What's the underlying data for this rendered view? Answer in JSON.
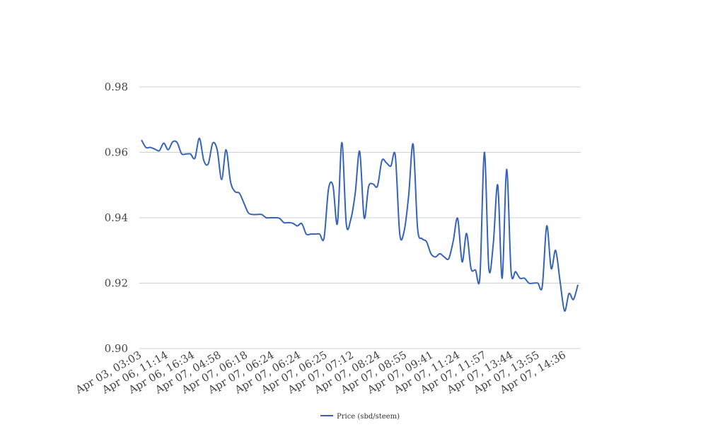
{
  "chart_data": {
    "type": "line",
    "title": "",
    "xlabel": "",
    "ylabel": "",
    "ylim": [
      0.9,
      0.98
    ],
    "yticks": [
      "0.90",
      "0.92",
      "0.94",
      "0.96",
      "0.98"
    ],
    "grid": true,
    "legend_position": "bottom",
    "xtick_labels": [
      "Apr 03, 03:03",
      "Apr 06, 11:14",
      "Apr 06, 16:34",
      "Apr 07, 04:58",
      "Apr 07, 06:18",
      "Apr 07, 06:24",
      "Apr 07, 06:24",
      "Apr 07, 06:25",
      "Apr 07, 07:12",
      "Apr 07, 08:24",
      "Apr 07, 08:55",
      "Apr 07, 09:41",
      "Apr 07, 11:24",
      "Apr 07, 11:57",
      "Apr 07, 13:44",
      "Apr 07, 13:55",
      "Apr 07, 14:36"
    ],
    "series": [
      {
        "name": "Price (sbd/steem)",
        "color": "#3563b8",
        "values": [
          0.9638,
          0.9615,
          0.9615,
          0.961,
          0.9605,
          0.9628,
          0.9608,
          0.9632,
          0.963,
          0.9596,
          0.9595,
          0.9595,
          0.9582,
          0.9643,
          0.9575,
          0.9565,
          0.9628,
          0.9608,
          0.9517,
          0.9608,
          0.951,
          0.948,
          0.9475,
          0.9445,
          0.9415,
          0.941,
          0.941,
          0.941,
          0.94,
          0.94,
          0.94,
          0.9398,
          0.9385,
          0.9385,
          0.9383,
          0.9375,
          0.9382,
          0.935,
          0.935,
          0.935,
          0.935,
          0.9338,
          0.9488,
          0.9498,
          0.9382,
          0.963,
          0.938,
          0.9395,
          0.9475,
          0.9603,
          0.94,
          0.9495,
          0.9503,
          0.9497,
          0.9575,
          0.9568,
          0.9558,
          0.959,
          0.935,
          0.936,
          0.9468,
          0.9625,
          0.9368,
          0.9336,
          0.9327,
          0.929,
          0.928,
          0.929,
          0.928,
          0.9275,
          0.9328,
          0.9398,
          0.9265,
          0.9352,
          0.9245,
          0.924,
          0.922,
          0.96,
          0.9245,
          0.932,
          0.95,
          0.9215,
          0.9548,
          0.9235,
          0.9235,
          0.9215,
          0.9215,
          0.92,
          0.92,
          0.92,
          0.919,
          0.9375,
          0.9245,
          0.93,
          0.9205,
          0.9115,
          0.9168,
          0.915,
          0.9195
        ]
      }
    ]
  }
}
